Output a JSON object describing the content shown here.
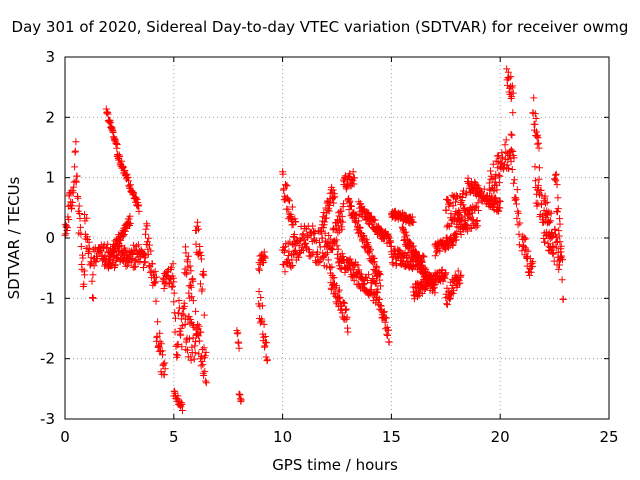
{
  "chart_data": {
    "type": "scatter",
    "title": "Day 301 of 2020, Sidereal Day-to-day VTEC variation (SDTVAR) for receiver owmg",
    "xlabel": "GPS time / hours",
    "ylabel": "SDTVAR / TECUs",
    "xlim": [
      0,
      25
    ],
    "ylim": [
      -3,
      3
    ],
    "grid": true,
    "marker": "+",
    "color": "#ff0000",
    "x_ticks": [
      "0",
      "5",
      "10",
      "15",
      "20",
      "25"
    ],
    "y_ticks": [
      "-3",
      "-2",
      "-1",
      "0",
      "1",
      "2",
      "3"
    ],
    "series": [
      {
        "name": "SDTVAR",
        "segments": [
          {
            "t0": 0.0,
            "t1": 0.3,
            "y0": 0.2,
            "y1": 0.7,
            "noise": 0.25
          },
          {
            "t0": 0.3,
            "t1": 0.5,
            "y0": 0.6,
            "y1": 1.4,
            "noise": 0.2
          },
          {
            "t0": 0.5,
            "t1": 0.9,
            "y0": 1.0,
            "y1": -0.9,
            "noise": 0.3
          },
          {
            "t0": 0.9,
            "t1": 1.3,
            "y0": 0.3,
            "y1": -0.8,
            "noise": 0.3
          },
          {
            "t0": 1.3,
            "t1": 1.8,
            "y0": -0.3,
            "y1": -0.2,
            "noise": 0.2
          },
          {
            "t0": 1.9,
            "t1": 2.4,
            "y0": 2.1,
            "y1": 1.5,
            "noise": 0.05
          },
          {
            "t0": 2.4,
            "t1": 3.4,
            "y0": 1.4,
            "y1": 0.5,
            "noise": 0.06
          },
          {
            "t0": 1.8,
            "t1": 3.7,
            "y0": -0.3,
            "y1": -0.3,
            "noise": 0.2
          },
          {
            "t0": 2.0,
            "t1": 3.0,
            "y0": -0.3,
            "y1": 0.3,
            "noise": 0.08
          },
          {
            "t0": 3.7,
            "t1": 4.2,
            "y0": 0.2,
            "y1": -0.9,
            "noise": 0.3
          },
          {
            "t0": 4.2,
            "t1": 4.6,
            "y0": -1.5,
            "y1": -2.3,
            "noise": 0.3
          },
          {
            "t0": 4.5,
            "t1": 5.0,
            "y0": -0.8,
            "y1": -0.6,
            "noise": 0.2
          },
          {
            "t0": 5.0,
            "t1": 5.2,
            "y0": -1.0,
            "y1": -2.0,
            "noise": 0.4
          },
          {
            "t0": 5.0,
            "t1": 5.4,
            "y0": -2.6,
            "y1": -2.8,
            "noise": 0.08
          },
          {
            "t0": 5.2,
            "t1": 6.0,
            "y0": -1.3,
            "y1": -1.8,
            "noise": 0.4
          },
          {
            "t0": 5.5,
            "t1": 5.9,
            "y0": -0.3,
            "y1": -1.0,
            "noise": 0.3
          },
          {
            "t0": 6.0,
            "t1": 6.5,
            "y0": -1.5,
            "y1": -2.2,
            "noise": 0.3
          },
          {
            "t0": 6.0,
            "t1": 6.4,
            "y0": 0.3,
            "y1": -1.0,
            "noise": 0.35
          },
          {
            "t0": 7.9,
            "t1": 8.0,
            "y0": -1.5,
            "y1": -1.8,
            "noise": 0.05
          },
          {
            "t0": 8.0,
            "t1": 8.1,
            "y0": -2.6,
            "y1": -2.7,
            "noise": 0.04
          },
          {
            "t0": 8.9,
            "t1": 9.2,
            "y0": -0.5,
            "y1": -0.2,
            "noise": 0.15
          },
          {
            "t0": 8.9,
            "t1": 9.3,
            "y0": -1.0,
            "y1": -1.8,
            "noise": 0.3
          },
          {
            "t0": 10.0,
            "t1": 10.6,
            "y0": 0.9,
            "y1": 0.1,
            "noise": 0.25
          },
          {
            "t0": 10.0,
            "t1": 11.0,
            "y0": -0.4,
            "y1": 0.0,
            "noise": 0.25
          },
          {
            "t0": 11.0,
            "t1": 12.3,
            "y0": 0.0,
            "y1": -0.3,
            "noise": 0.3
          },
          {
            "t0": 11.8,
            "t1": 12.4,
            "y0": 0.2,
            "y1": 0.8,
            "noise": 0.2
          },
          {
            "t0": 12.2,
            "t1": 13.0,
            "y0": -0.6,
            "y1": -1.4,
            "noise": 0.2
          },
          {
            "t0": 12.3,
            "t1": 12.8,
            "y0": 0.0,
            "y1": 0.4,
            "noise": 0.2
          },
          {
            "t0": 12.8,
            "t1": 13.3,
            "y0": 0.9,
            "y1": 1.0,
            "noise": 0.12
          },
          {
            "t0": 13.0,
            "t1": 14.5,
            "y0": 0.6,
            "y1": -0.7,
            "noise": 0.12
          },
          {
            "t0": 12.5,
            "t1": 14.3,
            "y0": -0.3,
            "y1": -0.9,
            "noise": 0.18
          },
          {
            "t0": 13.5,
            "t1": 15.0,
            "y0": 0.5,
            "y1": -0.1,
            "noise": 0.1
          },
          {
            "t0": 14.3,
            "t1": 14.9,
            "y0": -0.9,
            "y1": -1.6,
            "noise": 0.15
          },
          {
            "t0": 15.0,
            "t1": 16.0,
            "y0": 0.4,
            "y1": 0.3,
            "noise": 0.07
          },
          {
            "t0": 15.0,
            "t1": 16.5,
            "y0": -0.3,
            "y1": -0.4,
            "noise": 0.15
          },
          {
            "t0": 15.5,
            "t1": 17.0,
            "y0": 0.1,
            "y1": -0.9,
            "noise": 0.12
          },
          {
            "t0": 16.0,
            "t1": 17.5,
            "y0": -0.9,
            "y1": -0.6,
            "noise": 0.12
          },
          {
            "t0": 17.0,
            "t1": 18.0,
            "y0": -0.2,
            "y1": 0.0,
            "noise": 0.1
          },
          {
            "t0": 17.5,
            "t1": 18.2,
            "y0": -1.0,
            "y1": -0.6,
            "noise": 0.15
          },
          {
            "t0": 17.5,
            "t1": 18.5,
            "y0": 0.4,
            "y1": 0.6,
            "noise": 0.25
          },
          {
            "t0": 18.0,
            "t1": 19.0,
            "y0": 0.2,
            "y1": 0.4,
            "noise": 0.2
          },
          {
            "t0": 18.5,
            "t1": 20.0,
            "y0": 0.9,
            "y1": 0.5,
            "noise": 0.12
          },
          {
            "t0": 19.5,
            "t1": 20.5,
            "y0": 0.8,
            "y1": 1.5,
            "noise": 0.3
          },
          {
            "t0": 20.3,
            "t1": 20.6,
            "y0": 2.8,
            "y1": 2.2,
            "noise": 0.25
          },
          {
            "t0": 20.5,
            "t1": 20.9,
            "y0": 1.5,
            "y1": 0.1,
            "noise": 0.35
          },
          {
            "t0": 21.0,
            "t1": 21.5,
            "y0": -0.1,
            "y1": -0.5,
            "noise": 0.25
          },
          {
            "t0": 21.5,
            "t1": 21.8,
            "y0": 2.2,
            "y1": 1.4,
            "noise": 0.25
          },
          {
            "t0": 21.6,
            "t1": 22.4,
            "y0": 0.9,
            "y1": 0.0,
            "noise": 0.35
          },
          {
            "t0": 22.0,
            "t1": 22.8,
            "y0": 0.2,
            "y1": -0.3,
            "noise": 0.3
          },
          {
            "t0": 22.5,
            "t1": 22.9,
            "y0": 1.2,
            "y1": -0.9,
            "noise": 0.35
          }
        ]
      }
    ]
  }
}
